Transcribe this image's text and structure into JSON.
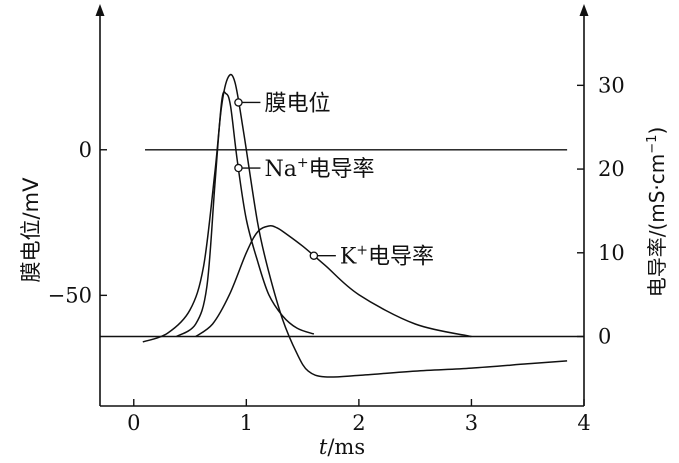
{
  "chart_data": {
    "type": "line",
    "xlabel_italic": "t",
    "xlabel_rest": "/ms",
    "x_ticks": [
      "0",
      "1",
      "2",
      "3",
      "4"
    ],
    "xlim": [
      -0.3,
      4.0
    ],
    "left_axis": {
      "label": "膜电位/mV",
      "ticks": [
        "0",
        "−50"
      ],
      "tick_values": [
        0,
        -50
      ],
      "ylim": [
        -88,
        48
      ]
    },
    "right_axis": {
      "label_prefix": "电导率/(mS",
      "label_dot": "·",
      "label_cm": "cm",
      "label_exp": "−1",
      "label_close": ")",
      "ticks": [
        "0",
        "10",
        "20",
        "30"
      ],
      "tick_values": [
        0,
        10,
        20,
        30
      ],
      "ylim": [
        -8.3,
        39
      ]
    },
    "reference_lines": {
      "zero_potential_mV": 0,
      "zero_conductance": 0
    },
    "series": [
      {
        "name": "膜电位",
        "axis": "left",
        "x": [
          0.08,
          0.3,
          0.5,
          0.62,
          0.72,
          0.78,
          0.84,
          0.9,
          0.98,
          1.1,
          1.2,
          1.32,
          1.45,
          1.55,
          1.7,
          2.0,
          2.5,
          3.0,
          3.5,
          3.85
        ],
        "y": [
          -66,
          -63,
          -55,
          -40,
          -8,
          15,
          25,
          23,
          5,
          -25,
          -42,
          -58,
          -70,
          -76,
          -78,
          -77.5,
          -76,
          -75,
          -73.5,
          -72.5
        ]
      },
      {
        "name": "Na⁺电导率",
        "axis": "right",
        "x": [
          0.38,
          0.55,
          0.65,
          0.72,
          0.78,
          0.82,
          0.86,
          0.92,
          1.0,
          1.1,
          1.2,
          1.32,
          1.45,
          1.6
        ],
        "y": [
          0,
          1.5,
          6,
          18,
          28,
          29,
          27.5,
          21,
          14,
          9,
          5,
          2.5,
          1,
          0.3
        ]
      },
      {
        "name": "K⁺电导率",
        "axis": "right",
        "x": [
          0.55,
          0.7,
          0.85,
          1.0,
          1.1,
          1.2,
          1.27,
          1.35,
          1.5,
          1.7,
          2.0,
          2.5,
          3.0
        ],
        "y": [
          0,
          1.5,
          5,
          10,
          12.5,
          13.2,
          13,
          12.3,
          10.8,
          8.5,
          5,
          1.5,
          0
        ]
      }
    ],
    "annotations": [
      {
        "label": "膜电位",
        "series": 0,
        "x": 0.93
      },
      {
        "label_main": "Na",
        "label_sup": "+",
        "label_tail": "电导率",
        "series": 1,
        "x": 0.93
      },
      {
        "label_main": "K",
        "label_sup": "+",
        "label_tail": "电导率",
        "series": 2,
        "x": 1.6
      }
    ]
  }
}
